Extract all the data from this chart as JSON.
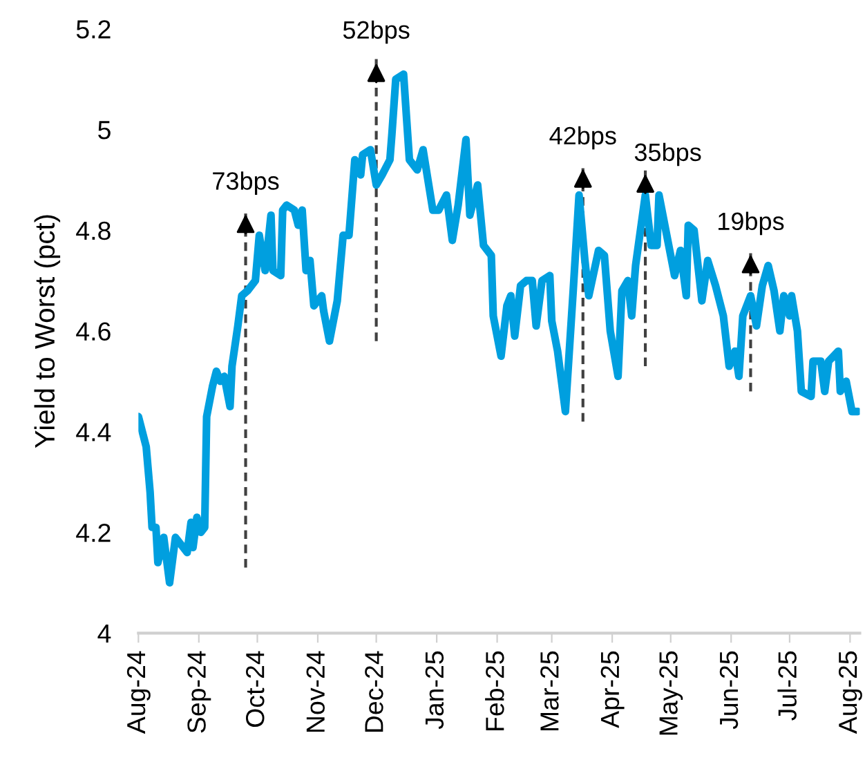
{
  "chart_data": {
    "type": "line",
    "ylabel": "Yield to Worst (pct)",
    "xlim": [
      "2024-08-01",
      "2025-08-06"
    ],
    "ylim": [
      4,
      5.2
    ],
    "yticks": [
      4,
      4.2,
      4.4,
      4.6,
      4.8,
      5,
      5.2
    ],
    "xticks": [
      {
        "value": "2024-08-01",
        "label": "Aug-24"
      },
      {
        "value": "2024-09-01",
        "label": "Sep-24"
      },
      {
        "value": "2024-10-01",
        "label": "Oct-24"
      },
      {
        "value": "2024-11-01",
        "label": "Nov-24"
      },
      {
        "value": "2024-12-01",
        "label": "Dec-24"
      },
      {
        "value": "2025-01-01",
        "label": "Jan-25"
      },
      {
        "value": "2025-02-01",
        "label": "Feb-25"
      },
      {
        "value": "2025-03-01",
        "label": "Mar-25"
      },
      {
        "value": "2025-04-01",
        "label": "Apr-25"
      },
      {
        "value": "2025-05-01",
        "label": "May-25"
      },
      {
        "value": "2025-06-01",
        "label": "Jun-25"
      },
      {
        "value": "2025-07-01",
        "label": "Jul-25"
      },
      {
        "value": "2025-08-01",
        "label": "Aug-25"
      }
    ],
    "grid": false,
    "marker": "none",
    "series": [
      {
        "color": "#009fdf",
        "line_style": "solid",
        "x": [
          "2024-08-01",
          "2024-08-05",
          "2024-08-07",
          "2024-08-08",
          "2024-08-10",
          "2024-08-11",
          "2024-08-14",
          "2024-08-17",
          "2024-08-20",
          "2024-08-22",
          "2024-08-26",
          "2024-08-28",
          "2024-08-29",
          "2024-08-31",
          "2024-09-02",
          "2024-09-04",
          "2024-09-05",
          "2024-09-08",
          "2024-09-10",
          "2024-09-12",
          "2024-09-14",
          "2024-09-17",
          "2024-09-18",
          "2024-09-21",
          "2024-09-23",
          "2024-09-26",
          "2024-09-30",
          "2024-10-02",
          "2024-10-05",
          "2024-10-08",
          "2024-10-09",
          "2024-10-13",
          "2024-10-14",
          "2024-10-16",
          "2024-10-20",
          "2024-10-22",
          "2024-10-24",
          "2024-10-26",
          "2024-10-28",
          "2024-10-30",
          "2024-11-03",
          "2024-11-04",
          "2024-11-07",
          "2024-11-11",
          "2024-11-14",
          "2024-11-17",
          "2024-11-20",
          "2024-11-23",
          "2024-11-24",
          "2024-11-28",
          "2024-12-01",
          "2024-12-04",
          "2024-12-08",
          "2024-12-09",
          "2024-12-11",
          "2024-12-15",
          "2024-12-18",
          "2024-12-22",
          "2024-12-25",
          "2024-12-30",
          "2025-01-02",
          "2025-01-06",
          "2025-01-09",
          "2025-01-12",
          "2025-01-16",
          "2025-01-18",
          "2025-01-22",
          "2025-01-25",
          "2025-01-29",
          "2025-01-30",
          "2025-02-03",
          "2025-02-06",
          "2025-02-08",
          "2025-02-10",
          "2025-02-13",
          "2025-02-16",
          "2025-02-19",
          "2025-02-21",
          "2025-02-24",
          "2025-02-28",
          "2025-03-01",
          "2025-03-04",
          "2025-03-08",
          "2025-03-12",
          "2025-03-15",
          "2025-03-18",
          "2025-03-20",
          "2025-03-25",
          "2025-03-28",
          "2025-03-31",
          "2025-04-04",
          "2025-04-06",
          "2025-04-09",
          "2025-04-11",
          "2025-04-13",
          "2025-04-18",
          "2025-04-21",
          "2025-04-24",
          "2025-04-25",
          "2025-04-29",
          "2025-05-03",
          "2025-05-06",
          "2025-05-09",
          "2025-05-10",
          "2025-05-13",
          "2025-05-17",
          "2025-05-20",
          "2025-05-24",
          "2025-05-28",
          "2025-05-31",
          "2025-06-03",
          "2025-06-05",
          "2025-06-07",
          "2025-06-11",
          "2025-06-14",
          "2025-06-17",
          "2025-06-20",
          "2025-06-23",
          "2025-06-26",
          "2025-06-28",
          "2025-07-01",
          "2025-07-02",
          "2025-07-05",
          "2025-07-07",
          "2025-07-12",
          "2025-07-13",
          "2025-07-17",
          "2025-07-19",
          "2025-07-21",
          "2025-07-26",
          "2025-07-27",
          "2025-07-30",
          "2025-08-02",
          "2025-08-05"
        ],
        "values": [
          4.43,
          4.37,
          4.28,
          4.21,
          4.21,
          4.14,
          4.19,
          4.1,
          4.19,
          4.18,
          4.16,
          4.22,
          4.17,
          4.23,
          4.2,
          4.21,
          4.43,
          4.49,
          4.52,
          4.5,
          4.51,
          4.45,
          4.53,
          4.61,
          4.67,
          4.68,
          4.7,
          4.79,
          4.72,
          4.83,
          4.72,
          4.71,
          4.84,
          4.85,
          4.84,
          4.81,
          4.84,
          4.72,
          4.74,
          4.65,
          4.67,
          4.64,
          4.58,
          4.66,
          4.79,
          4.79,
          4.94,
          4.91,
          4.95,
          4.96,
          4.89,
          4.91,
          4.94,
          4.99,
          5.1,
          5.11,
          4.94,
          4.92,
          4.96,
          4.84,
          4.84,
          4.87,
          4.78,
          4.85,
          4.98,
          4.83,
          4.89,
          4.77,
          4.75,
          4.63,
          4.55,
          4.65,
          4.67,
          4.59,
          4.69,
          4.7,
          4.7,
          4.61,
          4.7,
          4.71,
          4.62,
          4.56,
          4.44,
          4.68,
          4.87,
          4.74,
          4.67,
          4.76,
          4.75,
          4.6,
          4.51,
          4.68,
          4.7,
          4.63,
          4.73,
          4.87,
          4.77,
          4.77,
          4.87,
          4.79,
          4.71,
          4.76,
          4.67,
          4.81,
          4.8,
          4.66,
          4.74,
          4.69,
          4.63,
          4.53,
          4.56,
          4.51,
          4.63,
          4.67,
          4.61,
          4.69,
          4.73,
          4.68,
          4.6,
          4.67,
          4.63,
          4.67,
          4.6,
          4.48,
          4.47,
          4.54,
          4.54,
          4.48,
          4.54,
          4.56,
          4.48,
          4.5,
          4.44,
          4.44
        ]
      },
      {
        "type": "line",
        "color": "#404040",
        "line_style": "dashed",
        "x": [
          "2024-09-25",
          "2024-09-25"
        ],
        "values": [
          4.13,
          4.84
        ]
      },
      {
        "type": "line",
        "color": "#404040",
        "line_style": "dashed",
        "x": [
          "2024-12-01",
          "2024-12-01"
        ],
        "values": [
          4.58,
          5.14
        ]
      },
      {
        "type": "line",
        "color": "#404040",
        "line_style": "dashed",
        "x": [
          "2025-03-17",
          "2025-03-17"
        ],
        "values": [
          4.42,
          4.93
        ]
      },
      {
        "type": "line",
        "color": "#404040",
        "line_style": "dashed",
        "x": [
          "2025-04-18",
          "2025-04-18"
        ],
        "values": [
          4.53,
          4.92
        ]
      },
      {
        "type": "line",
        "color": "#404040",
        "line_style": "dashed",
        "x": [
          "2025-06-11",
          "2025-06-11"
        ],
        "values": [
          4.48,
          4.76
        ]
      }
    ],
    "annotations": [
      {
        "text": "73bps",
        "x": "2024-09-25",
        "y": 4.84
      },
      {
        "text": "52bps",
        "x": "2024-12-01",
        "y": 5.14
      },
      {
        "text": "42bps",
        "x": "2025-03-17",
        "y": 4.93
      },
      {
        "text": "35bps",
        "x": "2025-04-18",
        "y": 4.92
      },
      {
        "text": "19bps",
        "x": "2025-06-11",
        "y": 4.76
      }
    ]
  }
}
